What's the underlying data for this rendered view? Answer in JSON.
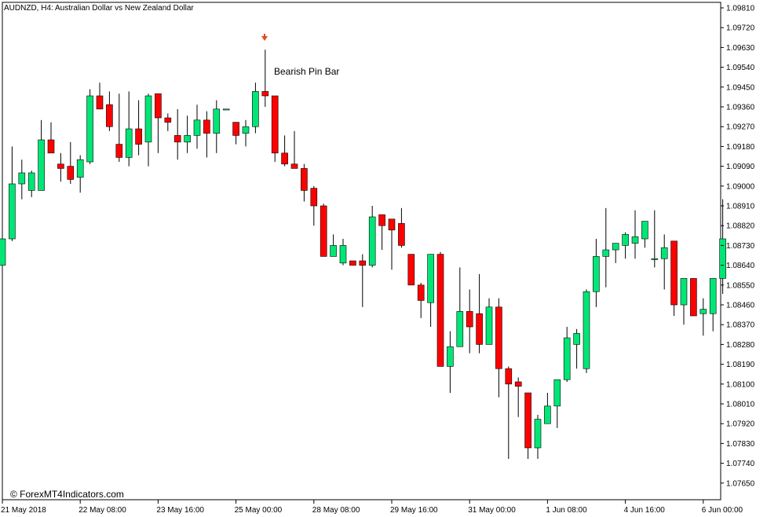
{
  "header": {
    "symbol_timeframe": "AUDNZD, H4:",
    "description": "Australian Dollar vs New Zealand Dollar"
  },
  "annotation": {
    "label": "Bearish Pin Bar",
    "arrow_icon": "down-arrow-icon",
    "arrow_color": "#e8491d"
  },
  "watermark": "© ForexMT4Indicators.com",
  "colors": {
    "bull": "#00e676",
    "bear": "#ff0000",
    "wick": "#000000",
    "axis": "#000000",
    "background": "#ffffff"
  },
  "chart_data": {
    "type": "candlestick",
    "title": "AUDNZD, H4:  Australian Dollar vs New Zealand Dollar",
    "ylim": [
      1.0761,
      1.0985
    ],
    "y_ticks": [
      "1.09810",
      "1.09720",
      "1.09630",
      "1.09540",
      "1.09450",
      "1.09360",
      "1.09270",
      "1.09180",
      "1.09090",
      "1.09000",
      "1.08910",
      "1.08820",
      "1.08730",
      "1.08640",
      "1.08550",
      "1.08460",
      "1.08370",
      "1.08280",
      "1.08190",
      "1.08100",
      "1.08010",
      "1.07920",
      "1.07830",
      "1.07740",
      "1.07650"
    ],
    "x_ticks": [
      "21 May 2018",
      "22 May 08:00",
      "23 May 16:00",
      "25 May 00:00",
      "28 May 08:00",
      "29 May 16:00",
      "31 May 00:00",
      "1 Jun 08:00",
      "4 Jun 16:00",
      "6 Jun 00:00"
    ],
    "x_tick_candles": [
      0,
      8,
      16,
      24,
      32,
      40,
      48,
      56,
      64,
      72
    ],
    "grid": false,
    "pin_bar_index": 27,
    "candles": [
      {
        "o": 1.0864,
        "h": 1.0876,
        "l": 1.0858,
        "c": 1.0876
      },
      {
        "o": 1.0876,
        "h": 1.0918,
        "l": 1.0875,
        "c": 1.0901
      },
      {
        "o": 1.0901,
        "h": 1.0912,
        "l": 1.0894,
        "c": 1.0906
      },
      {
        "o": 1.0898,
        "h": 1.0907,
        "l": 1.0895,
        "c": 1.0906
      },
      {
        "o": 1.0898,
        "h": 1.093,
        "l": 1.0898,
        "c": 1.0921
      },
      {
        "o": 1.0921,
        "h": 1.0929,
        "l": 1.0915,
        "c": 1.0915
      },
      {
        "o": 1.091,
        "h": 1.0915,
        "l": 1.0902,
        "c": 1.0908
      },
      {
        "o": 1.0909,
        "h": 1.092,
        "l": 1.0901,
        "c": 1.0903
      },
      {
        "o": 1.0904,
        "h": 1.0914,
        "l": 1.0897,
        "c": 1.0912
      },
      {
        "o": 1.0911,
        "h": 1.0944,
        "l": 1.091,
        "c": 1.0941
      },
      {
        "o": 1.0941,
        "h": 1.0947,
        "l": 1.0935,
        "c": 1.0935
      },
      {
        "o": 1.0937,
        "h": 1.0943,
        "l": 1.0925,
        "c": 1.0927
      },
      {
        "o": 1.0919,
        "h": 1.0942,
        "l": 1.0911,
        "c": 1.0913
      },
      {
        "o": 1.0913,
        "h": 1.0943,
        "l": 1.0909,
        "c": 1.0926
      },
      {
        "o": 1.0926,
        "h": 1.0939,
        "l": 1.0914,
        "c": 1.0919
      },
      {
        "o": 1.092,
        "h": 1.0942,
        "l": 1.0909,
        "c": 1.0941
      },
      {
        "o": 1.0942,
        "h": 1.0942,
        "l": 1.0915,
        "c": 1.0931
      },
      {
        "o": 1.0931,
        "h": 1.0933,
        "l": 1.0925,
        "c": 1.0929
      },
      {
        "o": 1.0923,
        "h": 1.0935,
        "l": 1.0912,
        "c": 1.092
      },
      {
        "o": 1.092,
        "h": 1.0932,
        "l": 1.0915,
        "c": 1.0923
      },
      {
        "o": 1.0923,
        "h": 1.0937,
        "l": 1.0917,
        "c": 1.093
      },
      {
        "o": 1.093,
        "h": 1.0934,
        "l": 1.0913,
        "c": 1.0924
      },
      {
        "o": 1.0924,
        "h": 1.0939,
        "l": 1.0915,
        "c": 1.0935
      },
      {
        "o": 1.0935,
        "h": 1.0935,
        "l": 1.0935,
        "c": 1.0935
      },
      {
        "o": 1.0929,
        "h": 1.0929,
        "l": 1.0919,
        "c": 1.0923
      },
      {
        "o": 1.0924,
        "h": 1.093,
        "l": 1.0918,
        "c": 1.0927
      },
      {
        "o": 1.0927,
        "h": 1.0947,
        "l": 1.0924,
        "c": 1.0943
      },
      {
        "o": 1.0943,
        "h": 1.0962,
        "l": 1.0936,
        "c": 1.0941
      },
      {
        "o": 1.0941,
        "h": 1.0941,
        "l": 1.0911,
        "c": 1.0915
      },
      {
        "o": 1.0915,
        "h": 1.0923,
        "l": 1.0909,
        "c": 1.091
      },
      {
        "o": 1.091,
        "h": 1.0925,
        "l": 1.0909,
        "c": 1.0908
      },
      {
        "o": 1.0908,
        "h": 1.091,
        "l": 1.0893,
        "c": 1.0898
      },
      {
        "o": 1.0899,
        "h": 1.09,
        "l": 1.0882,
        "c": 1.0891
      },
      {
        "o": 1.0891,
        "h": 1.0892,
        "l": 1.0868,
        "c": 1.0868
      },
      {
        "o": 1.0868,
        "h": 1.0878,
        "l": 1.0868,
        "c": 1.0873
      },
      {
        "o": 1.0865,
        "h": 1.0876,
        "l": 1.0864,
        "c": 1.0873
      },
      {
        "o": 1.0866,
        "h": 1.0866,
        "l": 1.0864,
        "c": 1.0864
      },
      {
        "o": 1.0866,
        "h": 1.0869,
        "l": 1.0845,
        "c": 1.0864
      },
      {
        "o": 1.0864,
        "h": 1.0891,
        "l": 1.0863,
        "c": 1.0886
      },
      {
        "o": 1.0887,
        "h": 1.0887,
        "l": 1.0871,
        "c": 1.0882
      },
      {
        "o": 1.0885,
        "h": 1.0885,
        "l": 1.0862,
        "c": 1.088
      },
      {
        "o": 1.0883,
        "h": 1.089,
        "l": 1.0872,
        "c": 1.0873
      },
      {
        "o": 1.0869,
        "h": 1.0869,
        "l": 1.0856,
        "c": 1.0855
      },
      {
        "o": 1.0855,
        "h": 1.0856,
        "l": 1.084,
        "c": 1.0848
      },
      {
        "o": 1.0847,
        "h": 1.0869,
        "l": 1.0836,
        "c": 1.0869
      },
      {
        "o": 1.0869,
        "h": 1.087,
        "l": 1.0818,
        "c": 1.0818
      },
      {
        "o": 1.0818,
        "h": 1.0834,
        "l": 1.0806,
        "c": 1.0827
      },
      {
        "o": 1.0827,
        "h": 1.0863,
        "l": 1.0827,
        "c": 1.0843
      },
      {
        "o": 1.0843,
        "h": 1.0853,
        "l": 1.0824,
        "c": 1.0836
      },
      {
        "o": 1.0842,
        "h": 1.086,
        "l": 1.0824,
        "c": 1.0828
      },
      {
        "o": 1.0828,
        "h": 1.0849,
        "l": 1.0828,
        "c": 1.0845
      },
      {
        "o": 1.0845,
        "h": 1.0849,
        "l": 1.0804,
        "c": 1.0817
      },
      {
        "o": 1.0817,
        "h": 1.0818,
        "l": 1.0776,
        "c": 1.081
      },
      {
        "o": 1.0811,
        "h": 1.0813,
        "l": 1.0795,
        "c": 1.0809
      },
      {
        "o": 1.0806,
        "h": 1.0806,
        "l": 1.0776,
        "c": 1.0781
      },
      {
        "o": 1.0781,
        "h": 1.0796,
        "l": 1.0776,
        "c": 1.0794
      },
      {
        "o": 1.0792,
        "h": 1.0806,
        "l": 1.0792,
        "c": 1.08
      },
      {
        "o": 1.08,
        "h": 1.0811,
        "l": 1.079,
        "c": 1.0812
      },
      {
        "o": 1.0812,
        "h": 1.0836,
        "l": 1.0811,
        "c": 1.0831
      },
      {
        "o": 1.0828,
        "h": 1.0835,
        "l": 1.0817,
        "c": 1.0833
      },
      {
        "o": 1.0817,
        "h": 1.0853,
        "l": 1.0815,
        "c": 1.0852
      },
      {
        "o": 1.0852,
        "h": 1.0876,
        "l": 1.0845,
        "c": 1.0868
      },
      {
        "o": 1.0868,
        "h": 1.089,
        "l": 1.0854,
        "c": 1.0871
      },
      {
        "o": 1.0871,
        "h": 1.0874,
        "l": 1.0865,
        "c": 1.0874
      },
      {
        "o": 1.0873,
        "h": 1.0879,
        "l": 1.0867,
        "c": 1.0878
      },
      {
        "o": 1.0874,
        "h": 1.0889,
        "l": 1.0867,
        "c": 1.0877
      },
      {
        "o": 1.0876,
        "h": 1.0884,
        "l": 1.0872,
        "c": 1.0884
      },
      {
        "o": 1.0867,
        "h": 1.0889,
        "l": 1.0863,
        "c": 1.0867
      },
      {
        "o": 1.0867,
        "h": 1.0878,
        "l": 1.0853,
        "c": 1.0872
      },
      {
        "o": 1.0875,
        "h": 1.0875,
        "l": 1.0841,
        "c": 1.0846
      },
      {
        "o": 1.0846,
        "h": 1.0858,
        "l": 1.0837,
        "c": 1.0858
      },
      {
        "o": 1.0858,
        "h": 1.0857,
        "l": 1.0842,
        "c": 1.0841
      },
      {
        "o": 1.0842,
        "h": 1.0849,
        "l": 1.0832,
        "c": 1.0844
      },
      {
        "o": 1.0842,
        "h": 1.0858,
        "l": 1.0834,
        "c": 1.0858
      },
      {
        "o": 1.0858,
        "h": 1.0894,
        "l": 1.0851,
        "c": 1.0876
      }
    ]
  }
}
